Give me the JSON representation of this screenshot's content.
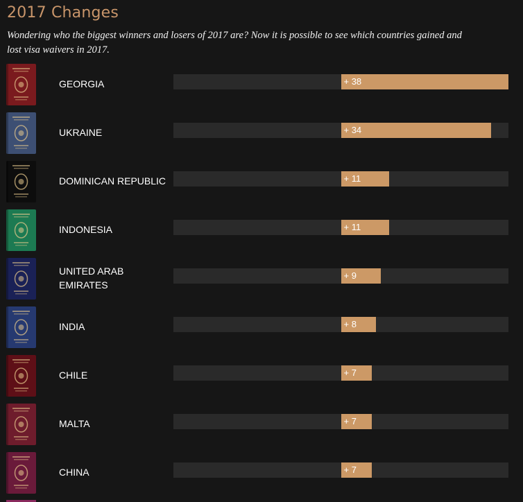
{
  "title": "2017 Changes",
  "subtitle": "Wondering who the biggest winners and losers of 2017 are? Now it is possible to see which countries gained and lost visa waivers in 2017.",
  "colors": {
    "accent": "#c8956a",
    "bar": "#cc9966",
    "track": "#2a2a2a",
    "background": "#161616"
  },
  "chart_data": {
    "type": "bar",
    "orientation": "horizontal",
    "categories": [
      "GEORGIA",
      "UKRAINE",
      "DOMINICAN REPUBLIC",
      "INDONESIA",
      "UNITED ARAB EMIRATES",
      "INDIA",
      "CHILE",
      "MALTA",
      "CHINA"
    ],
    "values": [
      38,
      34,
      11,
      11,
      9,
      8,
      7,
      7,
      7
    ],
    "labels": [
      "+ 38",
      "+ 34",
      "+ 11",
      "+ 11",
      "+ 9",
      "+ 8",
      "+ 7",
      "+ 7",
      "+ 7"
    ],
    "xlim": [
      -38,
      38
    ],
    "grid": false,
    "legend": "none"
  },
  "rows": [
    {
      "country": "GEORGIA",
      "label": "+ 38",
      "passport_color": "#7a1a1e",
      "passport_icon": "georgia-passport-icon"
    },
    {
      "country": "UKRAINE",
      "label": "+ 34",
      "passport_color": "#3d4f73",
      "passport_icon": "ukraine-passport-icon"
    },
    {
      "country": "DOMINICAN REPUBLIC",
      "label": "+ 11",
      "passport_color": "#0d0d0d",
      "passport_icon": "dominican-republic-passport-icon"
    },
    {
      "country": "INDONESIA",
      "label": "+ 11",
      "passport_color": "#1c7a52",
      "passport_icon": "indonesia-passport-icon"
    },
    {
      "country": "UNITED ARAB EMIRATES",
      "label": "+ 9",
      "passport_color": "#1a2156",
      "passport_icon": "uae-passport-icon"
    },
    {
      "country": "INDIA",
      "label": "+ 8",
      "passport_color": "#263970",
      "passport_icon": "india-passport-icon"
    },
    {
      "country": "CHILE",
      "label": "+ 7",
      "passport_color": "#5e0f17",
      "passport_icon": "chile-passport-icon"
    },
    {
      "country": "MALTA",
      "label": "+ 7",
      "passport_color": "#6e1c2c",
      "passport_icon": "malta-passport-icon"
    },
    {
      "country": "CHINA",
      "label": "+ 7",
      "passport_color": "#6a1a3a",
      "passport_icon": "china-passport-icon"
    }
  ]
}
